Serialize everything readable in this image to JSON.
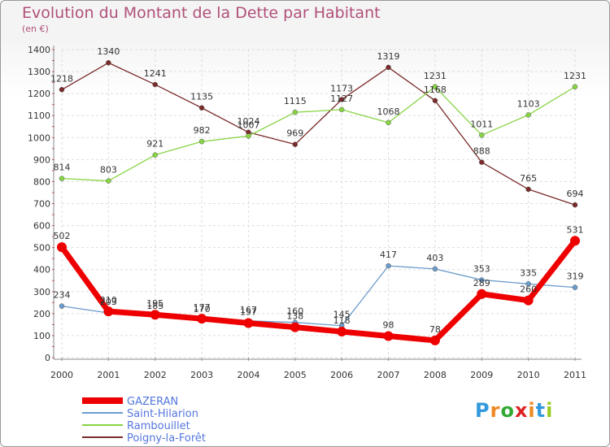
{
  "chart_data": {
    "type": "line",
    "title": "Evolution du Montant de la Dette par Habitant",
    "ylabel": "(en €)",
    "xlabel": "",
    "x": [
      "2000",
      "2001",
      "2002",
      "2003",
      "2004",
      "2005",
      "2006",
      "2007",
      "2008",
      "2009",
      "2010",
      "2011"
    ],
    "ylim": [
      0,
      1400
    ],
    "yticks": [
      0,
      100,
      200,
      300,
      400,
      500,
      600,
      700,
      800,
      900,
      1000,
      1100,
      1200,
      1300,
      1400
    ],
    "grid": true,
    "legend_position": "bottom-left",
    "series": [
      {
        "name": "GAZERAN",
        "color": "#ee0000",
        "values": [
          502,
          210,
          195,
          177,
          157,
          138,
          118,
          98,
          78,
          289,
          260,
          531
        ],
        "labels": [
          "502",
          "210",
          "195",
          "177",
          "157",
          "138",
          "118",
          "98",
          "78",
          "289",
          "260",
          "531"
        ]
      },
      {
        "name": "Saint-Hilarion",
        "color": "#6a9ccc",
        "values": [
          234,
          203,
          185,
          170,
          167,
          160,
          145,
          417,
          403,
          353,
          335,
          319
        ],
        "labels": [
          "234",
          "203",
          "185",
          "170",
          "167",
          "160",
          "145",
          "417",
          "403",
          "353",
          "335",
          "319"
        ]
      },
      {
        "name": "Rambouillet",
        "color": "#88d444",
        "values": [
          814,
          803,
          921,
          982,
          1007,
          1115,
          1127,
          1068,
          1231,
          1011,
          1103,
          1231
        ],
        "labels": [
          "814",
          "803",
          "921",
          "982",
          "1007",
          "1115",
          "1127",
          "1068",
          "1231",
          "1011",
          "1103",
          "1231"
        ]
      },
      {
        "name": "Poigny-la-Forêt",
        "color": "#7a2a2a",
        "values": [
          1218,
          1340,
          1241,
          1135,
          1024,
          969,
          1173,
          1319,
          1168,
          888,
          765,
          694
        ],
        "labels": [
          "1218",
          "1340",
          "1241",
          "1135",
          "1024",
          "969",
          "1173",
          "1319",
          "1168",
          "888",
          "765",
          "694"
        ]
      }
    ]
  },
  "logo": {
    "letters": [
      "P",
      "r",
      "o",
      "x",
      "i",
      "t",
      "i"
    ],
    "colors": [
      "#3399dd",
      "#ee8822",
      "#33aa33",
      "#dd2222",
      "#ee8822",
      "#3399dd",
      "#99cc22"
    ]
  }
}
